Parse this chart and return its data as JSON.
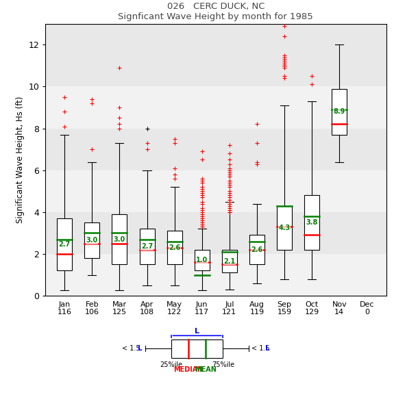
{
  "title1": "026   CERC DUCK, NC",
  "title2": "Signficant Wave Height by month for 1985",
  "ylabel": "Significant Wave Height, Hs (ft)",
  "months": [
    "Jan",
    "Feb",
    "Mar",
    "Apr",
    "May",
    "Jun",
    "Jul",
    "Aug",
    "Sep",
    "Oct",
    "Nov",
    "Dec"
  ],
  "counts": [
    116,
    106,
    125,
    108,
    122,
    117,
    121,
    119,
    159,
    129,
    14,
    0
  ],
  "ylim": [
    0,
    13
  ],
  "yticks": [
    0,
    2,
    4,
    6,
    8,
    10,
    12
  ],
  "plot_bg": "#e8e8e8",
  "band_color": "#f2f2f2",
  "box_stats": [
    {
      "q1": 1.2,
      "median": 2.0,
      "q3": 3.7,
      "mean": 2.7,
      "whislo": 0.25,
      "whishi": 7.7,
      "fliers_red": [
        9.5,
        8.8,
        8.1
      ],
      "fliers_black": []
    },
    {
      "q1": 1.8,
      "median": 2.5,
      "q3": 3.5,
      "mean": 3.0,
      "whislo": 1.0,
      "whishi": 6.4,
      "fliers_red": [
        9.4,
        9.2,
        7.0
      ],
      "fliers_black": []
    },
    {
      "q1": 1.5,
      "median": 2.5,
      "q3": 3.9,
      "mean": 3.0,
      "whislo": 0.25,
      "whishi": 7.3,
      "fliers_red": [
        10.9,
        9.0,
        8.5,
        8.2,
        8.0
      ],
      "fliers_black": []
    },
    {
      "q1": 1.5,
      "median": 2.2,
      "q3": 3.2,
      "mean": 2.7,
      "whislo": 0.5,
      "whishi": 6.0,
      "fliers_red": [
        7.3,
        7.0
      ],
      "fliers_black": [
        8.0
      ]
    },
    {
      "q1": 1.5,
      "median": 2.3,
      "q3": 3.1,
      "mean": 2.6,
      "whislo": 0.5,
      "whishi": 5.2,
      "fliers_red": [
        7.5,
        7.3,
        6.1,
        5.8,
        5.6
      ],
      "fliers_black": []
    },
    {
      "q1": 1.2,
      "median": 1.6,
      "q3": 2.2,
      "mean": 1.0,
      "whislo": 0.25,
      "whishi": 3.2,
      "fliers_red": [
        6.9,
        6.5,
        5.6,
        5.5,
        5.4,
        5.2,
        5.1,
        5.0,
        4.9,
        4.8,
        4.7,
        4.5,
        4.4,
        4.2,
        4.1,
        4.0,
        3.9,
        3.8,
        3.7,
        3.6,
        3.5,
        3.4,
        3.3
      ],
      "fliers_black": []
    },
    {
      "q1": 1.1,
      "median": 1.5,
      "q3": 2.2,
      "mean": 2.1,
      "whislo": 0.3,
      "whishi": 4.5,
      "fliers_red": [
        7.2,
        6.8,
        6.5,
        6.3,
        6.1,
        6.0,
        5.9,
        5.8,
        5.7,
        5.5,
        5.4,
        5.3,
        5.2,
        5.0,
        4.9,
        4.8,
        4.7,
        4.6,
        4.5,
        4.4,
        4.3,
        4.2,
        4.1,
        4.0,
        4.0
      ],
      "fliers_black": []
    },
    {
      "q1": 1.5,
      "median": 2.2,
      "q3": 2.9,
      "mean": 2.6,
      "whislo": 0.6,
      "whishi": 4.4,
      "fliers_red": [
        8.2,
        7.3,
        6.4,
        6.3
      ],
      "fliers_black": []
    },
    {
      "q1": 2.2,
      "median": 3.3,
      "q3": 4.3,
      "mean": 4.3,
      "whislo": 0.8,
      "whishi": 9.1,
      "fliers_red": [
        12.9,
        12.4,
        11.5,
        11.4,
        11.3,
        11.2,
        11.1,
        11.0,
        11.0,
        10.9,
        10.5,
        10.4
      ],
      "fliers_black": []
    },
    {
      "q1": 2.2,
      "median": 2.9,
      "q3": 4.8,
      "mean": 3.8,
      "whislo": 0.8,
      "whishi": 9.3,
      "fliers_red": [
        10.5,
        10.1
      ],
      "fliers_black": []
    },
    {
      "q1": 7.7,
      "median": 8.2,
      "q3": 9.9,
      "mean": 8.9,
      "whislo": 6.4,
      "whishi": 12.0,
      "fliers_red": [],
      "fliers_black": []
    },
    {
      "q1": null,
      "median": null,
      "q3": null,
      "mean": null,
      "whislo": null,
      "whishi": null,
      "fliers_red": [],
      "fliers_black": []
    }
  ]
}
